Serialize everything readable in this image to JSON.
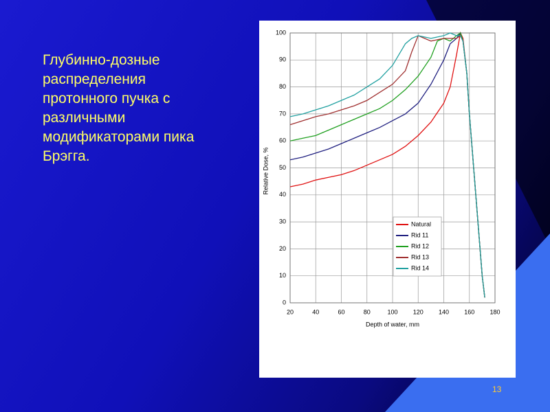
{
  "slide": {
    "text_lines": [
      "Глубинно-дозные",
      "распределения",
      "протонного пучка с",
      "различными",
      "модификаторами пика",
      "Брэгга."
    ],
    "page_number": "13"
  },
  "chart_data": {
    "type": "line",
    "x_label": "Depth of water, mm",
    "y_label": "Relative Dose, %",
    "xlim": [
      20,
      180
    ],
    "xticks": [
      20,
      40,
      60,
      80,
      100,
      120,
      140,
      160,
      180
    ],
    "ylim": [
      0,
      100
    ],
    "yticks": [
      0,
      10,
      20,
      30,
      40,
      50,
      60,
      70,
      80,
      90,
      100
    ],
    "grid": true,
    "legend": "lower-right",
    "series": [
      {
        "name": "Natural",
        "color": "#e01010",
        "x": [
          20,
          30,
          40,
          50,
          60,
          70,
          80,
          90,
          100,
          110,
          120,
          130,
          140,
          145,
          150,
          153,
          155,
          158,
          160,
          165,
          170,
          172
        ],
        "values": [
          43,
          44,
          45.5,
          46.5,
          47.5,
          49,
          51,
          53,
          55,
          58,
          62,
          67,
          74,
          80,
          92,
          100,
          98,
          85,
          70,
          40,
          10,
          2
        ]
      },
      {
        "name": "Rid 11",
        "color": "#202080",
        "x": [
          20,
          30,
          40,
          50,
          60,
          70,
          80,
          90,
          100,
          110,
          120,
          130,
          140,
          145,
          150,
          153,
          155,
          158,
          160,
          165,
          170,
          172
        ],
        "values": [
          53,
          54,
          55.5,
          57,
          59,
          61,
          63,
          65,
          67.5,
          70,
          74,
          81,
          90,
          96,
          98,
          100,
          97,
          85,
          70,
          40,
          10,
          2
        ]
      },
      {
        "name": "Rid 12",
        "color": "#20a020",
        "x": [
          20,
          30,
          40,
          50,
          60,
          70,
          80,
          90,
          100,
          110,
          120,
          130,
          135,
          140,
          145,
          150,
          153,
          155,
          158,
          160,
          165,
          170,
          172
        ],
        "values": [
          60,
          61,
          62,
          64,
          66,
          68,
          70,
          72,
          75,
          79,
          84,
          91,
          97,
          98,
          97,
          99,
          100,
          97,
          85,
          70,
          40,
          10,
          2
        ]
      },
      {
        "name": "Rid 13",
        "color": "#a03030",
        "x": [
          20,
          30,
          40,
          50,
          60,
          70,
          80,
          90,
          100,
          110,
          115,
          120,
          125,
          130,
          140,
          150,
          153,
          155,
          158,
          160,
          165,
          170,
          172
        ],
        "values": [
          66,
          67.5,
          69,
          70,
          71.5,
          73,
          75,
          78,
          81,
          86,
          93,
          99,
          98,
          97,
          98,
          98,
          99,
          97,
          85,
          70,
          40,
          10,
          2
        ]
      },
      {
        "name": "Rid 14",
        "color": "#20a0a0",
        "x": [
          20,
          30,
          40,
          50,
          60,
          70,
          80,
          90,
          100,
          105,
          110,
          115,
          120,
          130,
          140,
          145,
          150,
          153,
          155,
          158,
          160,
          165,
          170,
          172
        ],
        "values": [
          69,
          70,
          71.5,
          73,
          75,
          77,
          80,
          83,
          88,
          92,
          96,
          98,
          99,
          98,
          99,
          100,
          99,
          99,
          97,
          85,
          70,
          40,
          10,
          2
        ]
      }
    ]
  }
}
